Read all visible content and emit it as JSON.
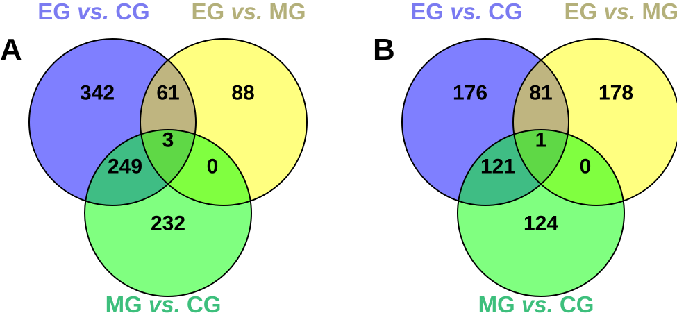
{
  "colors": {
    "set_a": "#7f7fff",
    "set_b": "#ffff80",
    "set_c": "#80ff80",
    "ab": "#bfb580",
    "ac": "#3fbd84",
    "bc": "#80ff40",
    "abc": "#5fd846",
    "label_a": "#7b7bf1",
    "label_b": "#b4b07a",
    "label_c": "#3dbf7c",
    "outline": "#000000"
  },
  "set_labels": {
    "a": {
      "prefix": "EG ",
      "italic": "vs.",
      "suffix": " CG"
    },
    "b": {
      "prefix": "EG ",
      "italic": "vs.",
      "suffix": " MG"
    },
    "c": {
      "prefix": "MG ",
      "italic": "vs.",
      "suffix": " CG"
    }
  },
  "panels": [
    {
      "letter": "A",
      "counts": {
        "a_only": "342",
        "ab": "61",
        "b_only": "88",
        "abc": "3",
        "ac": "249",
        "bc": "0",
        "c_only": "232"
      }
    },
    {
      "letter": "B",
      "counts": {
        "a_only": "176",
        "ab": "81",
        "b_only": "178",
        "abc": "1",
        "ac": "121",
        "bc": "0",
        "c_only": "124"
      }
    }
  ]
}
